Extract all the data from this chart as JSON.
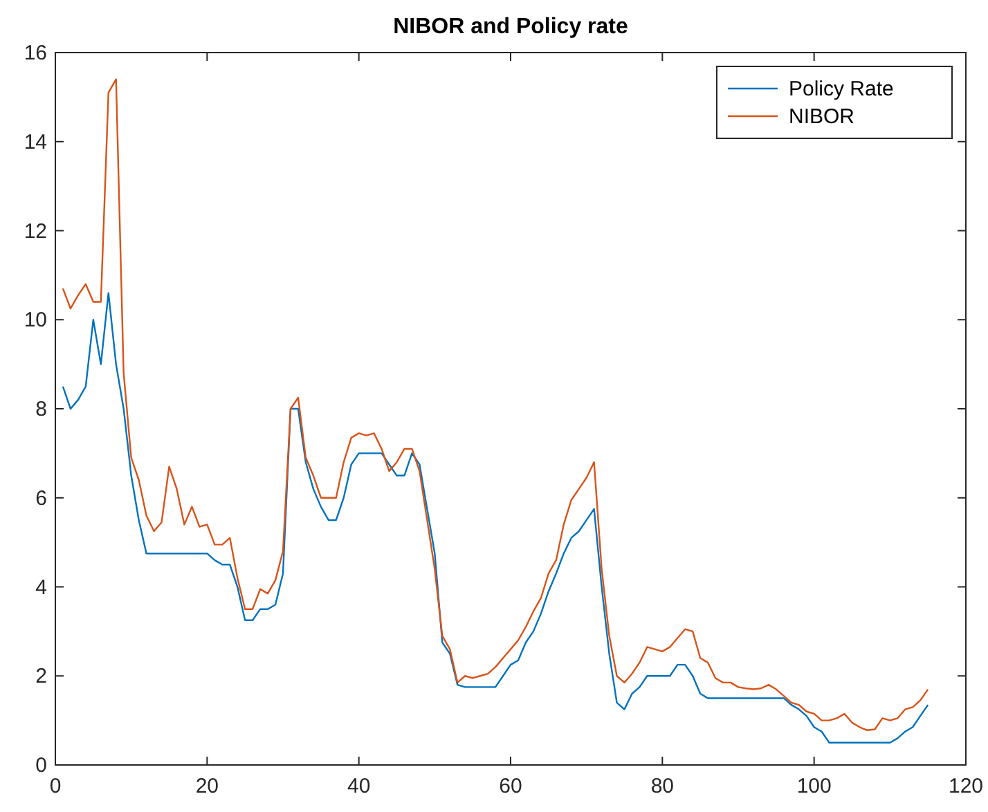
{
  "chart_data": {
    "type": "line",
    "title": "NIBOR and Policy rate",
    "x": [
      1,
      2,
      3,
      4,
      5,
      6,
      7,
      8,
      9,
      10,
      11,
      12,
      13,
      14,
      15,
      16,
      17,
      18,
      19,
      20,
      21,
      22,
      23,
      24,
      25,
      26,
      27,
      28,
      29,
      30,
      31,
      32,
      33,
      34,
      35,
      36,
      37,
      38,
      39,
      40,
      41,
      42,
      43,
      44,
      45,
      46,
      47,
      48,
      49,
      50,
      51,
      52,
      53,
      54,
      55,
      56,
      57,
      58,
      59,
      60,
      61,
      62,
      63,
      64,
      65,
      66,
      67,
      68,
      69,
      70,
      71,
      72,
      73,
      74,
      75,
      76,
      77,
      78,
      79,
      80,
      81,
      82,
      83,
      84,
      85,
      86,
      87,
      88,
      89,
      90,
      91,
      92,
      93,
      94,
      95,
      96,
      97,
      98,
      99,
      100,
      101,
      102,
      103,
      104,
      105,
      106,
      107,
      108,
      109,
      110,
      111,
      112,
      113,
      114,
      115
    ],
    "series": [
      {
        "name": "Policy Rate",
        "color": "#0072bd",
        "values": [
          8.5,
          8.0,
          8.2,
          8.5,
          10,
          9.0,
          10.6,
          9.0,
          8.0,
          6.5,
          5.5,
          4.75,
          4.75,
          4.75,
          4.75,
          4.75,
          4.75,
          4.75,
          4.75,
          4.75,
          4.6,
          4.5,
          4.5,
          4.0,
          3.25,
          3.25,
          3.5,
          3.5,
          3.6,
          4.3,
          8.0,
          8.0,
          6.8,
          6.2,
          5.8,
          5.5,
          5.5,
          6.0,
          6.75,
          7.0,
          7.0,
          7.0,
          7.0,
          6.75,
          6.5,
          6.5,
          7.0,
          6.75,
          5.75,
          4.75,
          2.75,
          2.5,
          1.8,
          1.75,
          1.75,
          1.75,
          1.75,
          1.75,
          2.0,
          2.25,
          2.35,
          2.75,
          3.0,
          3.4,
          3.9,
          4.3,
          4.75,
          5.1,
          5.25,
          5.5,
          5.75,
          4.0,
          2.5,
          1.4,
          1.25,
          1.6,
          1.75,
          2.0,
          2.0,
          2.0,
          2.0,
          2.25,
          2.25,
          2.0,
          1.6,
          1.5,
          1.5,
          1.5,
          1.5,
          1.5,
          1.5,
          1.5,
          1.5,
          1.5,
          1.5,
          1.5,
          1.35,
          1.25,
          1.1,
          0.85,
          0.75,
          0.5,
          0.5,
          0.5,
          0.5,
          0.5,
          0.5,
          0.5,
          0.5,
          0.5,
          0.6,
          0.75,
          0.85,
          1.1,
          1.35
        ]
      },
      {
        "name": "NIBOR",
        "color": "#d95319",
        "values": [
          10.7,
          10.25,
          10.55,
          10.8,
          10.4,
          10.4,
          15.1,
          15.4,
          8.8,
          6.9,
          6.4,
          5.6,
          5.25,
          5.45,
          6.7,
          6.2,
          5.4,
          5.8,
          5.35,
          5.4,
          4.95,
          4.95,
          5.1,
          4.2,
          3.5,
          3.5,
          3.95,
          3.85,
          4.15,
          4.8,
          8.0,
          8.25,
          6.9,
          6.5,
          6.0,
          6.0,
          6.0,
          6.8,
          7.35,
          7.45,
          7.4,
          7.45,
          7.1,
          6.6,
          6.8,
          7.1,
          7.1,
          6.6,
          5.5,
          4.4,
          2.9,
          2.6,
          1.85,
          2.0,
          1.95,
          2.0,
          2.05,
          2.2,
          2.4,
          2.6,
          2.8,
          3.1,
          3.45,
          3.75,
          4.3,
          4.6,
          5.4,
          5.95,
          6.2,
          6.45,
          6.8,
          4.4,
          2.9,
          2.0,
          1.85,
          2.05,
          2.3,
          2.65,
          2.6,
          2.55,
          2.65,
          2.85,
          3.05,
          3.0,
          2.4,
          2.3,
          1.95,
          1.85,
          1.85,
          1.75,
          1.72,
          1.7,
          1.72,
          1.8,
          1.7,
          1.55,
          1.4,
          1.35,
          1.2,
          1.15,
          1.0,
          1.0,
          1.05,
          1.15,
          0.95,
          0.85,
          0.78,
          0.8,
          1.05,
          1.0,
          1.05,
          1.25,
          1.3,
          1.45,
          1.7
        ]
      }
    ],
    "xlim": [
      0,
      120
    ],
    "xticks": [
      0,
      20,
      40,
      60,
      80,
      100,
      120
    ],
    "ylim": [
      0,
      16
    ],
    "yticks": [
      0,
      2,
      4,
      6,
      8,
      10,
      12,
      14,
      16
    ],
    "legend": "top right",
    "grid": false,
    "marker": "none",
    "line_style": "solid"
  }
}
